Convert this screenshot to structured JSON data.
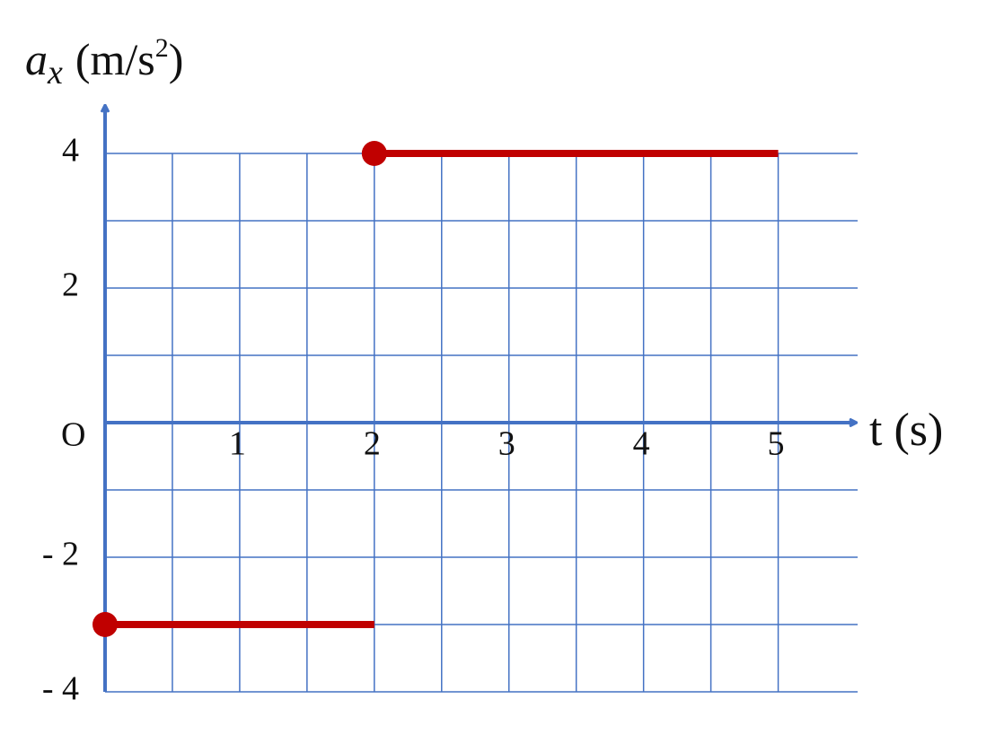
{
  "chart_data": {
    "type": "line",
    "ylabel": [
      "a",
      "x",
      "(m/s",
      "2",
      ")"
    ],
    "xlabel": "t (s)",
    "origin_label": "O",
    "xlim": [
      0,
      5.59
    ],
    "ylim": [
      -4,
      4
    ],
    "xticks": [
      1,
      2,
      3,
      4,
      5
    ],
    "yticks": [
      {
        "value": -4,
        "label": "- 4"
      },
      {
        "value": -2,
        "label": "- 2"
      },
      2,
      4
    ],
    "xgrid": [
      0.5,
      1,
      1.5,
      2,
      2.5,
      3,
      3.5,
      4,
      4.5,
      5
    ],
    "ygrid": [
      -4,
      -3,
      -2,
      -1,
      1,
      2,
      3,
      4
    ],
    "grid": true,
    "color": "#c00000",
    "segments": [
      {
        "x": [
          0,
          2
        ],
        "values": [
          -3,
          -3
        ]
      },
      {
        "x": [
          2,
          5
        ],
        "values": [
          4,
          4
        ]
      }
    ]
  }
}
